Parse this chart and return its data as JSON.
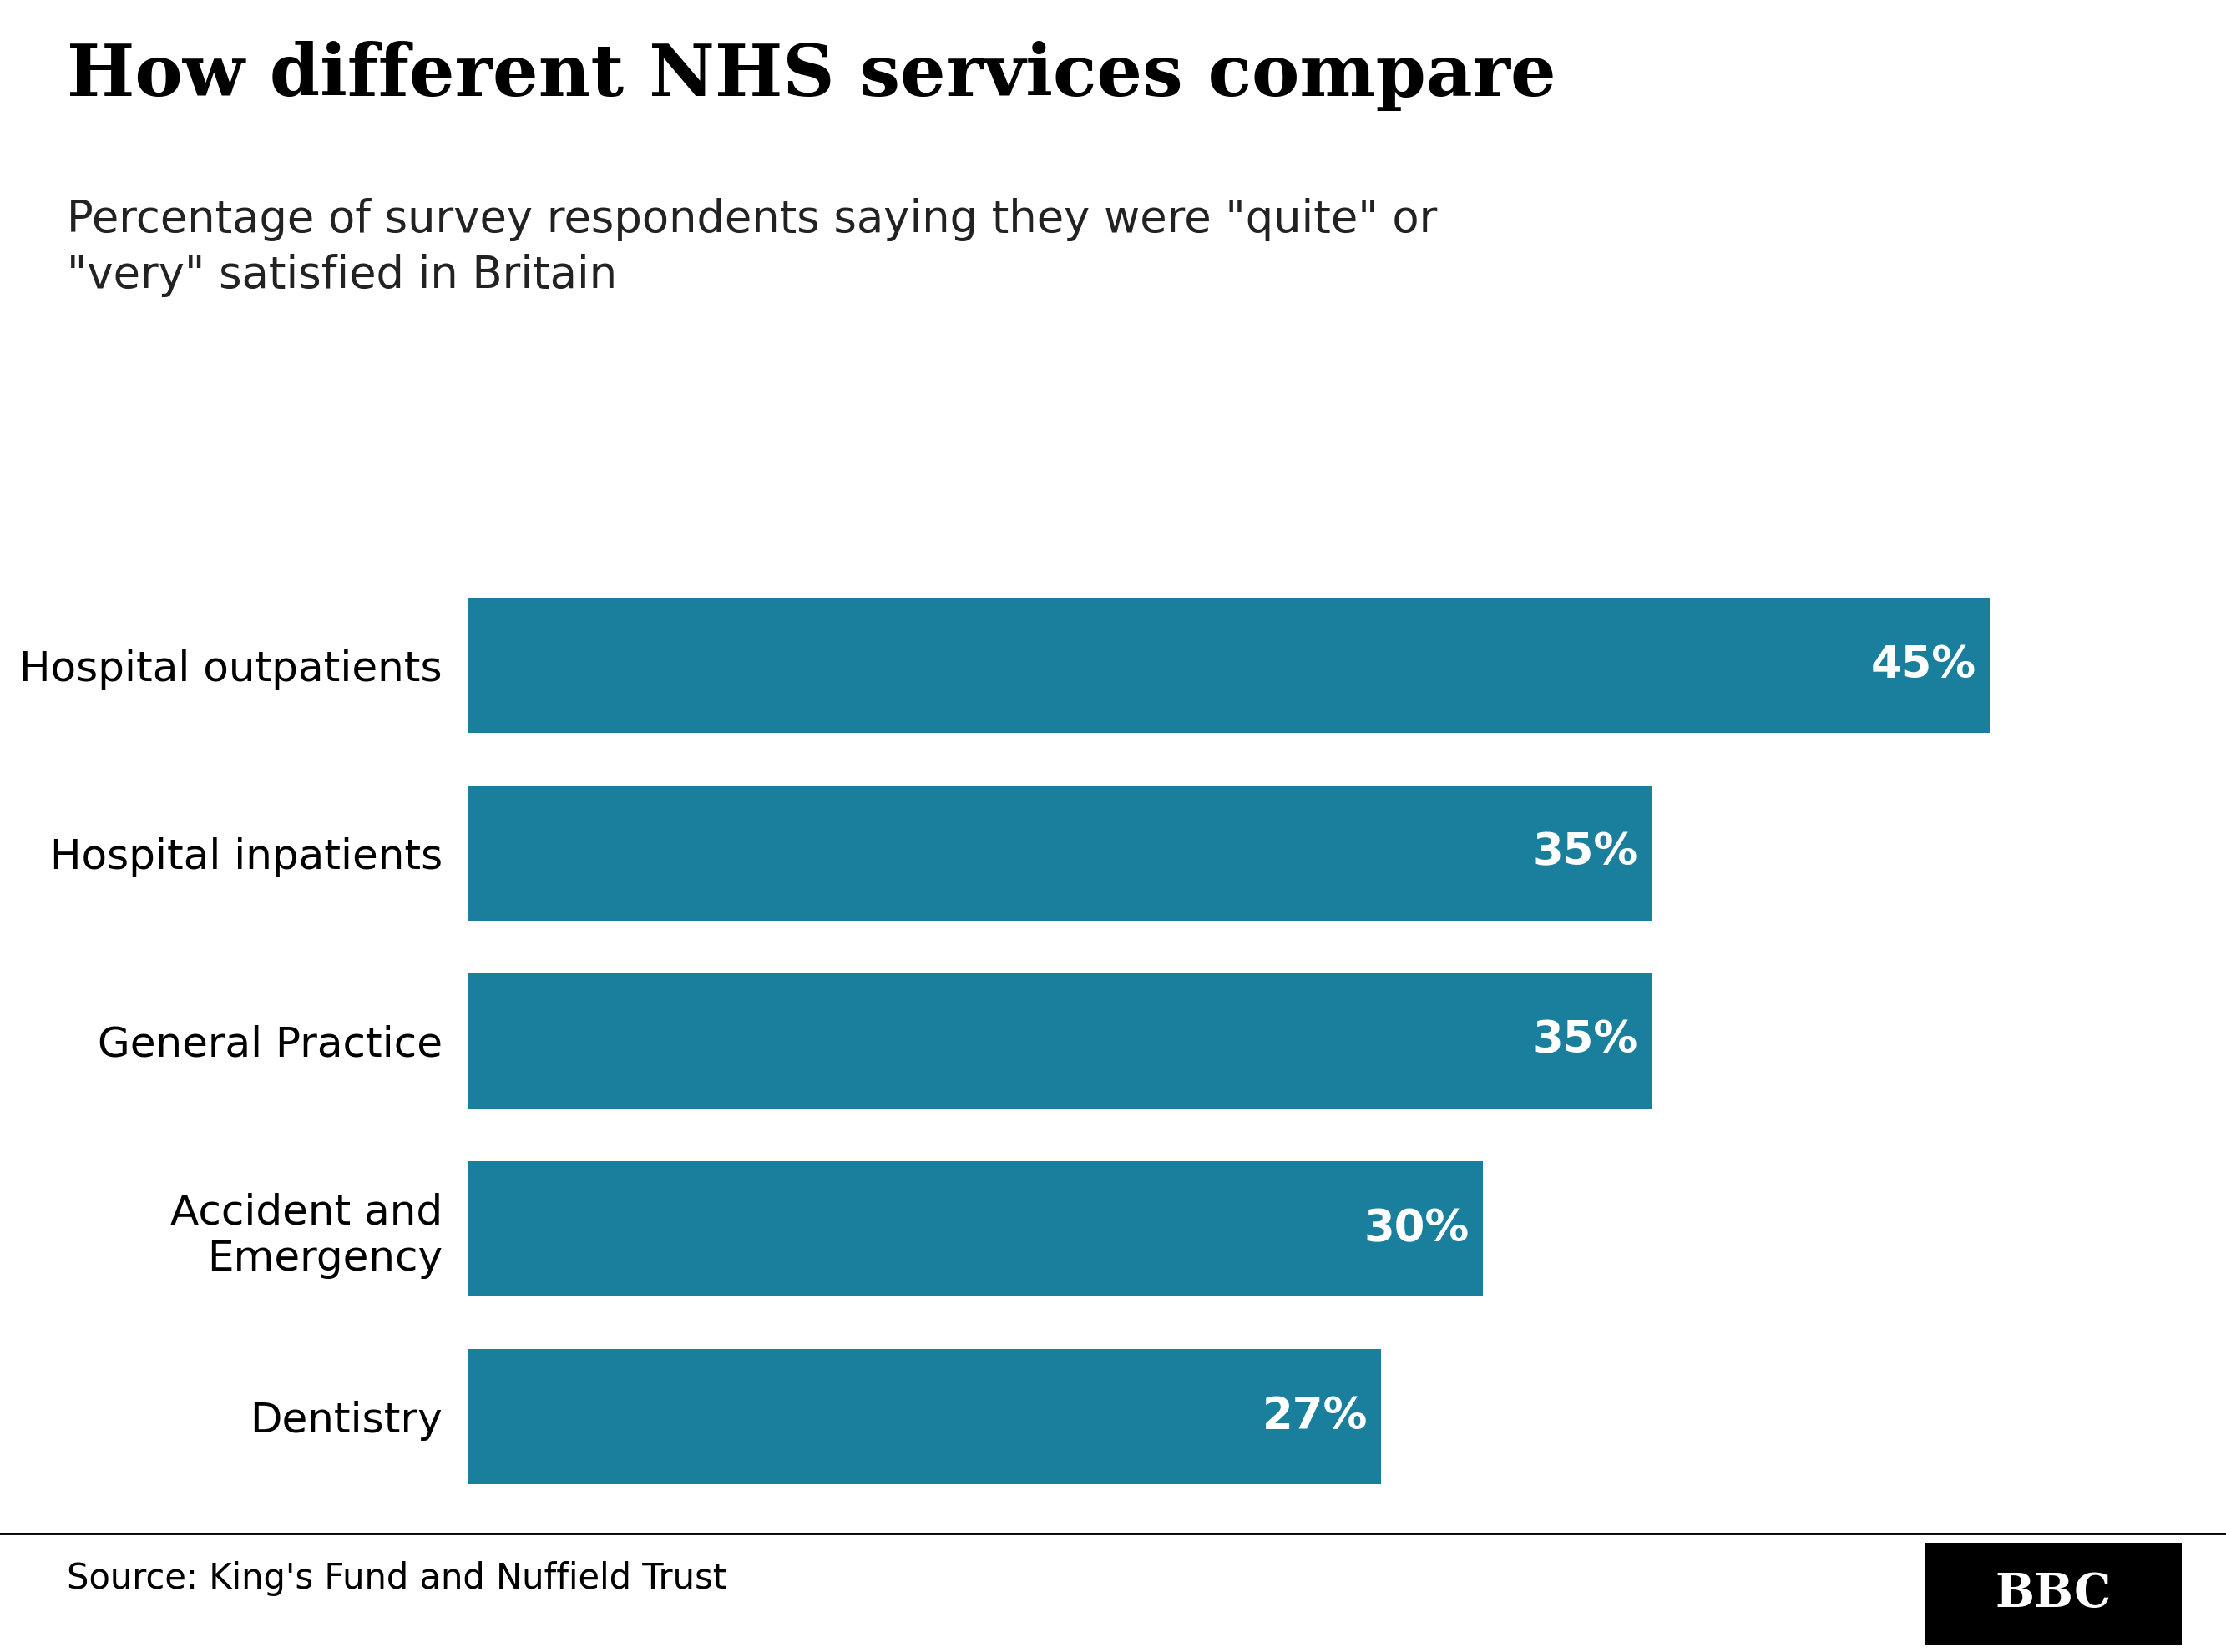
{
  "title": "How different NHS services compare",
  "subtitle": "Percentage of survey respondents saying they were \"quite\" or\n\"very\" satisfied in Britain",
  "categories": [
    "Hospital outpatients",
    "Hospital inpatients",
    "General Practice",
    "Accident and\nEmergency",
    "Dentistry"
  ],
  "values": [
    45,
    35,
    35,
    30,
    27
  ],
  "bar_color": "#1a7f9c",
  "label_color": "#ffffff",
  "title_color": "#000000",
  "subtitle_color": "#222222",
  "background_color": "#ffffff",
  "source_text": "Source: King's Fund and Nuffield Trust",
  "bbc_text": "BBC",
  "xlim": [
    0,
    50
  ],
  "title_fontsize": 62,
  "subtitle_fontsize": 38,
  "category_fontsize": 36,
  "value_fontsize": 38,
  "source_fontsize": 30,
  "bar_height": 0.72
}
